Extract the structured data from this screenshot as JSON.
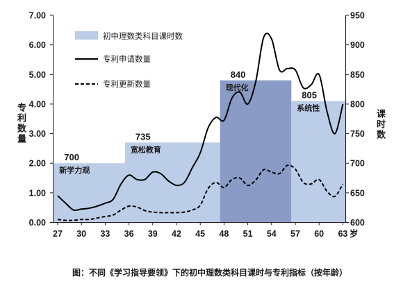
{
  "chart_data": {
    "type": "bar",
    "caption": "图：不同《学习指导要领》下的初中理数类科目课时与专利指标（按年龄）",
    "x": [
      27,
      28,
      29,
      30,
      31,
      32,
      33,
      34,
      35,
      36,
      37,
      38,
      39,
      40,
      41,
      42,
      43,
      44,
      45,
      46,
      47,
      48,
      49,
      50,
      51,
      52,
      53,
      54,
      55,
      56,
      57,
      58,
      59,
      60,
      61,
      62,
      63
    ],
    "x_ticks": [
      27,
      30,
      33,
      36,
      39,
      42,
      45,
      48,
      51,
      54,
      57,
      60,
      63
    ],
    "x_unit": "岁",
    "y_left": {
      "label": "专利数量",
      "range": [
        0,
        7
      ],
      "ticks": [
        "0.00",
        "1.00",
        "2.00",
        "3.00",
        "4.00",
        "5.00",
        "6.00",
        "7.00"
      ]
    },
    "y_right": {
      "label": "课时数",
      "range": [
        600,
        950
      ],
      "ticks": [
        600,
        650,
        700,
        750,
        800,
        850,
        900,
        950
      ]
    },
    "bars": {
      "name": "初中理数类科目课时数",
      "axis": "right",
      "segments": [
        {
          "from": 27,
          "to": 35,
          "value": 700,
          "label": "新学力观",
          "color": "#bccde8"
        },
        {
          "from": 36,
          "to": 47,
          "value": 735,
          "label": "宽松教育",
          "color": "#bccde8"
        },
        {
          "from": 48,
          "to": 56,
          "value": 840,
          "label": "现代化",
          "color": "#8a9bc6"
        },
        {
          "from": 57,
          "to": 63,
          "value": 805,
          "label": "系统性",
          "color": "#bccde8"
        }
      ]
    },
    "series": [
      {
        "name": "专利申请数量",
        "axis": "left",
        "dashed": false,
        "color": "#000000",
        "values": [
          0.9,
          0.65,
          0.42,
          0.45,
          0.48,
          0.55,
          0.65,
          0.78,
          1.3,
          1.6,
          1.45,
          1.45,
          1.7,
          1.65,
          1.4,
          1.25,
          1.35,
          1.85,
          2.35,
          3.2,
          3.55,
          3.45,
          4.2,
          4.4,
          4.0,
          4.75,
          6.25,
          6.2,
          5.15,
          5.2,
          5.15,
          4.55,
          4.65,
          5.0,
          3.75,
          3.0,
          4.0
        ]
      },
      {
        "name": "专利更新数量",
        "axis": "left",
        "dashed": true,
        "color": "#000000",
        "values": [
          0.1,
          0.07,
          0.07,
          0.1,
          0.1,
          0.15,
          0.2,
          0.25,
          0.42,
          0.55,
          0.52,
          0.4,
          0.35,
          0.33,
          0.33,
          0.33,
          0.35,
          0.42,
          0.58,
          1.15,
          1.35,
          1.18,
          1.45,
          1.5,
          1.25,
          1.43,
          1.78,
          1.7,
          1.65,
          1.93,
          1.8,
          1.35,
          1.3,
          1.45,
          1.05,
          0.88,
          1.3
        ]
      }
    ],
    "legend": "top-left",
    "grid": false
  }
}
